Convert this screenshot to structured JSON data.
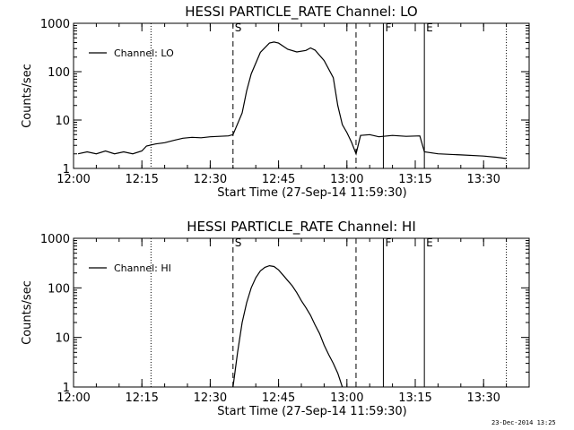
{
  "chart_data": [
    {
      "type": "line",
      "title": "HESSI PARTICLE_RATE Channel: LO",
      "xlabel": "Start Time (27-Sep-14 11:59:30)",
      "ylabel": "Counts/sec",
      "xlim": [
        "12:00",
        "13:40"
      ],
      "ylim": [
        1,
        1000
      ],
      "y_scale": "log",
      "x_ticks": [
        "12:00",
        "12:15",
        "12:30",
        "12:45",
        "13:00",
        "13:15",
        "13:30"
      ],
      "y_ticks": [
        "1",
        "10",
        "100",
        "1000"
      ],
      "legend": "top-left",
      "markers": [
        {
          "label": "",
          "time": "12:17",
          "style": "dotted"
        },
        {
          "label": "S",
          "time": "12:35",
          "style": "dashed"
        },
        {
          "label": "",
          "time": "13:02",
          "style": "dashed"
        },
        {
          "label": "F",
          "time": "13:08",
          "style": "solid"
        },
        {
          "label": "E",
          "time": "13:17",
          "style": "solid"
        },
        {
          "label": "",
          "time": "13:35",
          "style": "dotted"
        }
      ],
      "series": [
        {
          "name": "Channel: LO",
          "x": [
            "12:01",
            "12:03",
            "12:05",
            "12:07",
            "12:09",
            "12:11",
            "12:13",
            "12:15",
            "12:16",
            "12:18",
            "12:20",
            "12:22",
            "12:24",
            "12:26",
            "12:28",
            "12:30",
            "12:32",
            "12:34",
            "12:35",
            "12:37",
            "12:38",
            "12:39",
            "12:41",
            "12:43",
            "12:44",
            "12:45",
            "12:47",
            "12:49",
            "12:51",
            "12:52",
            "12:53",
            "12:55",
            "12:57",
            "12:58",
            "12:59",
            "13:00",
            "13:01",
            "13:02",
            "13:03",
            "13:05",
            "13:07",
            "13:10",
            "13:13",
            "13:16",
            "13:17",
            "13:20",
            "13:25",
            "13:30",
            "13:33",
            "13:35"
          ],
          "y": [
            2.0,
            2.2,
            2.0,
            2.3,
            2.0,
            2.2,
            2.0,
            2.3,
            2.9,
            3.2,
            3.4,
            3.8,
            4.2,
            4.4,
            4.3,
            4.5,
            4.6,
            4.7,
            5.0,
            14,
            40,
            90,
            250,
            390,
            410,
            390,
            290,
            255,
            275,
            310,
            280,
            170,
            75,
            20,
            8,
            5.5,
            3.5,
            2.0,
            4.8,
            5.0,
            4.5,
            4.8,
            4.6,
            4.7,
            2.2,
            2.0,
            1.9,
            1.8,
            1.7,
            1.6
          ]
        }
      ]
    },
    {
      "type": "line",
      "title": "HESSI PARTICLE_RATE Channel: HI",
      "xlabel": "Start Time (27-Sep-14 11:59:30)",
      "ylabel": "Counts/sec",
      "xlim": [
        "12:00",
        "13:40"
      ],
      "ylim": [
        1,
        1000
      ],
      "y_scale": "log",
      "x_ticks": [
        "12:00",
        "12:15",
        "12:30",
        "12:45",
        "13:00",
        "13:15",
        "13:30"
      ],
      "y_ticks": [
        "1",
        "10",
        "100",
        "1000"
      ],
      "legend": "top-left",
      "markers": [
        {
          "label": "",
          "time": "12:17",
          "style": "dotted"
        },
        {
          "label": "S",
          "time": "12:35",
          "style": "dashed"
        },
        {
          "label": "",
          "time": "13:02",
          "style": "dashed"
        },
        {
          "label": "F",
          "time": "13:08",
          "style": "solid"
        },
        {
          "label": "E",
          "time": "13:17",
          "style": "solid"
        },
        {
          "label": "",
          "time": "13:35",
          "style": "dotted"
        }
      ],
      "series": [
        {
          "name": "Channel: HI",
          "x": [
            "12:35",
            "12:36",
            "12:37",
            "12:38",
            "12:39",
            "12:40",
            "12:41",
            "12:42",
            "12:43",
            "12:44",
            "12:45",
            "12:46",
            "12:47",
            "12:48",
            "12:49",
            "12:50",
            "12:51",
            "12:52",
            "12:53",
            "12:54",
            "12:55",
            "12:56",
            "12:57",
            "12:58",
            "12:59"
          ],
          "y": [
            1.0,
            5,
            20,
            50,
            100,
            160,
            220,
            260,
            280,
            270,
            230,
            180,
            140,
            110,
            80,
            55,
            40,
            28,
            18,
            12,
            7,
            4.5,
            3.0,
            1.9,
            1.0
          ]
        }
      ]
    }
  ],
  "timestamp": "23-Dec-2014 13:25"
}
